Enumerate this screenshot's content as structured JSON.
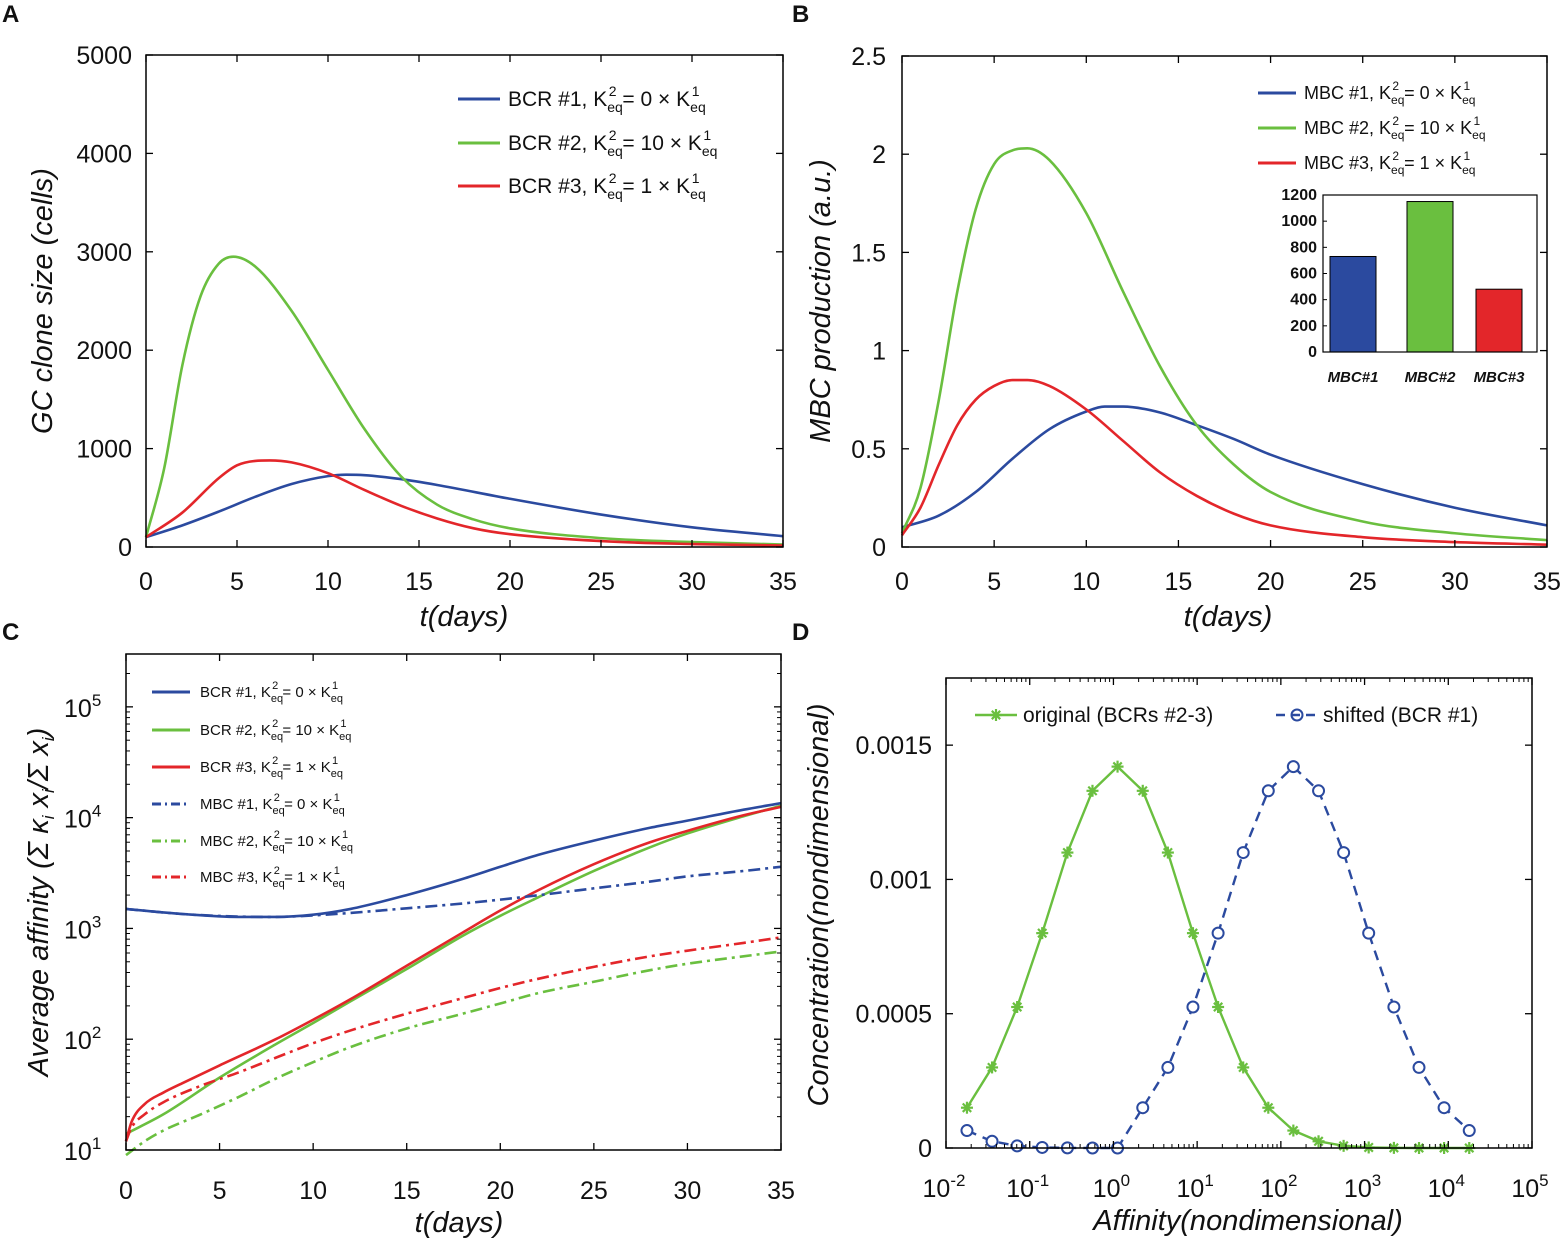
{
  "figure": {
    "panels": {
      "A": {
        "label": "A"
      },
      "B": {
        "label": "B"
      },
      "C": {
        "label": "C"
      },
      "D": {
        "label": "D"
      }
    }
  },
  "chart_data": [
    {
      "id": "A",
      "type": "line",
      "title": "",
      "xlabel": "t(days)",
      "ylabel": "GC clone size (cells)",
      "xlim": [
        0,
        35
      ],
      "ylim": [
        0,
        5000
      ],
      "xticks": [
        "0",
        "5",
        "10",
        "15",
        "20",
        "25",
        "30",
        "35"
      ],
      "yticks": [
        "0",
        "1000",
        "2000",
        "3000",
        "4000",
        "5000"
      ],
      "legend": [
        "BCR #1, K2eq = 0 × K1eq",
        "BCR #2, K2eq = 10 × K1eq",
        "BCR #3, K2eq = 1 × K1eq"
      ],
      "series": [
        {
          "name": "BCR #1, K2eq = 0 × K1eq",
          "color": "#2b4a9f",
          "style": "solid",
          "x": [
            0,
            2,
            4,
            6,
            8,
            10,
            11,
            12,
            14,
            16,
            20,
            25,
            30,
            35
          ],
          "y": [
            100,
            220,
            360,
            510,
            640,
            720,
            735,
            730,
            690,
            630,
            490,
            330,
            200,
            110
          ]
        },
        {
          "name": "BCR #2, K2eq = 10 × K1eq",
          "color": "#6abf3f",
          "style": "solid",
          "x": [
            0,
            1,
            2,
            3,
            4,
            4.8,
            6,
            8,
            10,
            12,
            14,
            16,
            18,
            20,
            25,
            30,
            35
          ],
          "y": [
            100,
            800,
            1850,
            2550,
            2880,
            2950,
            2850,
            2400,
            1800,
            1200,
            720,
            430,
            280,
            190,
            90,
            50,
            25
          ]
        },
        {
          "name": "BCR #3, K2eq = 1 × K1eq",
          "color": "#e3262a",
          "style": "solid",
          "x": [
            0,
            2,
            4,
            5,
            6,
            6.8,
            8,
            10,
            12,
            14,
            16,
            18,
            20,
            25,
            30,
            35
          ],
          "y": [
            100,
            350,
            700,
            830,
            875,
            880,
            860,
            750,
            580,
            420,
            290,
            190,
            130,
            60,
            30,
            15
          ]
        }
      ]
    },
    {
      "id": "B",
      "type": "line",
      "title": "",
      "xlabel": "t(days)",
      "ylabel": "MBC production (a.u.)",
      "xlim": [
        0,
        35
      ],
      "ylim": [
        0,
        2.5
      ],
      "xticks": [
        "0",
        "5",
        "10",
        "15",
        "20",
        "25",
        "30",
        "35"
      ],
      "yticks": [
        "0",
        "0.5",
        "1",
        "1.5",
        "2",
        "2.5"
      ],
      "legend": [
        "MBC #1, K2eq = 0 × K1eq",
        "MBC #2, K2eq = 10 × K1eq",
        "MBC #3, K2eq = 1 × K1eq"
      ],
      "series": [
        {
          "name": "MBC #1, K2eq = 0 × K1eq",
          "color": "#2b4a9f",
          "style": "solid",
          "x": [
            0,
            2,
            4,
            6,
            8,
            10,
            11,
            12,
            14,
            16,
            18,
            20,
            25,
            30,
            35
          ],
          "y": [
            0.1,
            0.16,
            0.28,
            0.45,
            0.6,
            0.69,
            0.715,
            0.715,
            0.685,
            0.62,
            0.55,
            0.47,
            0.32,
            0.2,
            0.11
          ]
        },
        {
          "name": "MBC #2, K2eq = 10 × K1eq",
          "color": "#6abf3f",
          "style": "solid",
          "x": [
            0,
            1,
            2,
            3,
            4,
            5,
            6,
            6.8,
            8,
            10,
            12,
            14,
            16,
            18,
            20,
            25,
            30,
            35
          ],
          "y": [
            0.07,
            0.3,
            0.75,
            1.3,
            1.72,
            1.95,
            2.02,
            2.03,
            1.97,
            1.7,
            1.3,
            0.92,
            0.62,
            0.42,
            0.28,
            0.13,
            0.07,
            0.035
          ]
        },
        {
          "name": "MBC #3, K2eq = 1 × K1eq",
          "color": "#e3262a",
          "style": "solid",
          "x": [
            0,
            1,
            2,
            3,
            4,
            5,
            6,
            6.8,
            8,
            10,
            12,
            14,
            16,
            18,
            20,
            25,
            30,
            35
          ],
          "y": [
            0.06,
            0.2,
            0.42,
            0.62,
            0.75,
            0.82,
            0.85,
            0.85,
            0.82,
            0.7,
            0.54,
            0.38,
            0.26,
            0.17,
            0.11,
            0.05,
            0.025,
            0.012
          ]
        }
      ],
      "inset": {
        "type": "bar",
        "categories": [
          "MBC#1",
          "MBC#2",
          "MBC#3"
        ],
        "values": [
          730,
          1150,
          480
        ],
        "colors": [
          "#2b4a9f",
          "#6abf3f",
          "#e3262a"
        ],
        "ylim": [
          0,
          1200
        ],
        "yticks": [
          "0",
          "200",
          "400",
          "600",
          "800",
          "1000",
          "1200"
        ]
      }
    },
    {
      "id": "C",
      "type": "line",
      "title": "",
      "xlabel": "t(days)",
      "ylabel": "Average affinity (Σ κ_i x_i/Σ x_i)",
      "xlim": [
        0,
        35
      ],
      "ylim": [
        10,
        300000
      ],
      "yscale": "log",
      "xticks": [
        "0",
        "5",
        "10",
        "15",
        "20",
        "25",
        "30",
        "35"
      ],
      "ytick_exponents": [
        "1",
        "2",
        "3",
        "4",
        "5"
      ],
      "ytick_base": "10",
      "legend": [
        "BCR #1, K2eq = 0 × K1eq",
        "BCR #2, K2eq = 10 × K1eq",
        "BCR #3, K2eq = 1 × K1eq",
        "MBC #1, K2eq = 0 × K1eq",
        "MBC #2, K2eq = 10 × K1eq",
        "MBC #3, K2eq = 1 × K1eq"
      ],
      "series": [
        {
          "name": "BCR #1, K2eq = 0 × K1eq",
          "color": "#2b4a9f",
          "style": "solid",
          "x": [
            0,
            3,
            6,
            8,
            10,
            12,
            15,
            18,
            20,
            22,
            25,
            28,
            30,
            33,
            35
          ],
          "y": [
            1500,
            1350,
            1270,
            1270,
            1330,
            1500,
            2000,
            2800,
            3600,
            4600,
            6200,
            8100,
            9400,
            11800,
            13500
          ]
        },
        {
          "name": "BCR #2, K2eq = 10 × K1eq",
          "color": "#6abf3f",
          "style": "solid",
          "x": [
            0,
            2,
            5,
            8,
            10,
            12,
            15,
            18,
            20,
            22,
            25,
            28,
            30,
            33,
            35
          ],
          "y": [
            14,
            21,
            45,
            90,
            140,
            220,
            430,
            860,
            1300,
            1900,
            3300,
            5400,
            7200,
            10300,
            12800
          ]
        },
        {
          "name": "BCR #3, K2eq = 1 × K1eq",
          "color": "#e3262a",
          "style": "solid",
          "x": [
            0,
            0.3,
            1,
            2,
            3,
            5,
            8,
            10,
            12,
            15,
            18,
            20,
            22,
            25,
            28,
            30,
            33,
            35
          ],
          "y": [
            12,
            18,
            26,
            33,
            40,
            58,
            100,
            150,
            230,
            460,
            920,
            1450,
            2200,
            3800,
            6000,
            7600,
            10500,
            12500
          ]
        },
        {
          "name": "MBC #1, K2eq = 0 × K1eq",
          "color": "#2b4a9f",
          "style": "dashdot",
          "x": [
            0,
            3,
            6,
            8,
            10,
            12,
            15,
            18,
            20,
            22,
            25,
            28,
            30,
            33,
            35
          ],
          "y": [
            1500,
            1350,
            1280,
            1270,
            1310,
            1380,
            1520,
            1680,
            1820,
            1990,
            2300,
            2650,
            2950,
            3300,
            3600
          ]
        },
        {
          "name": "MBC #2, K2eq = 10 × K1eq",
          "color": "#6abf3f",
          "style": "dashdot",
          "x": [
            0,
            1,
            2,
            4,
            6,
            8,
            10,
            12,
            15,
            18,
            20,
            22,
            25,
            28,
            30,
            33,
            35
          ],
          "y": [
            9,
            12,
            15,
            21,
            30,
            44,
            62,
            85,
            125,
            170,
            210,
            260,
            330,
            420,
            480,
            560,
            620
          ]
        },
        {
          "name": "MBC #3, K2eq = 1 × K1eq",
          "color": "#e3262a",
          "style": "dashdot",
          "x": [
            0,
            0.3,
            1,
            2,
            4,
            6,
            8,
            10,
            12,
            15,
            18,
            20,
            22,
            25,
            28,
            30,
            33,
            35
          ],
          "y": [
            12,
            16,
            21,
            27,
            38,
            50,
            68,
            92,
            120,
            170,
            235,
            290,
            350,
            450,
            560,
            630,
            740,
            830
          ]
        }
      ]
    },
    {
      "id": "D",
      "type": "line",
      "title": "",
      "xlabel": "Affinity(nondimensional)",
      "ylabel": "Concentration(nondimensional)",
      "xscale": "log",
      "xlim": [
        0.01,
        100000
      ],
      "ylim": [
        0,
        0.00175
      ],
      "xtick_exponents": [
        "-2",
        "-1",
        "0",
        "1",
        "2",
        "3",
        "4",
        "5"
      ],
      "xtick_base": "10",
      "yticks": [
        "0",
        "0.0005",
        "0.001",
        "0.0015"
      ],
      "legend": [
        "original (BCRs #2-3)",
        "shifted (BCR #1)"
      ],
      "series": [
        {
          "name": "original (BCRs #2-3)",
          "color": "#6abf3f",
          "style": "solid",
          "marker": "asterisk",
          "x": [
            0.0178,
            0.0355,
            0.0708,
            0.141,
            0.282,
            0.562,
            1.12,
            2.24,
            4.47,
            8.91,
            17.8,
            35.5,
            70.8,
            141,
            282,
            562,
            1120,
            2240,
            4470,
            8910,
            17800
          ],
          "y": [
            0.00015,
            0.0003,
            0.000525,
            0.0008,
            0.0011,
            0.00133,
            0.00142,
            0.00133,
            0.0011,
            0.0008,
            0.000525,
            0.0003,
            0.00015,
            6.5e-05,
            2.5e-05,
            8e-06,
            2e-06,
            5e-07,
            0,
            0,
            0
          ]
        },
        {
          "name": "shifted (BCR #1)",
          "color": "#2b4a9f",
          "style": "dashed",
          "marker": "circle",
          "x": [
            0.0178,
            0.0355,
            0.0708,
            0.141,
            0.282,
            0.562,
            1.12,
            2.24,
            4.47,
            8.91,
            17.8,
            35.5,
            70.8,
            141,
            282,
            562,
            1120,
            2240,
            4470,
            8910,
            17800
          ],
          "y": [
            6.5e-05,
            2.5e-05,
            8e-06,
            2e-06,
            5e-07,
            0,
            0,
            0.00015,
            0.0003,
            0.000525,
            0.0008,
            0.0011,
            0.00133,
            0.00142,
            0.00133,
            0.0011,
            0.0008,
            0.000525,
            0.0003,
            0.00015,
            6.5e-05
          ]
        }
      ]
    }
  ]
}
